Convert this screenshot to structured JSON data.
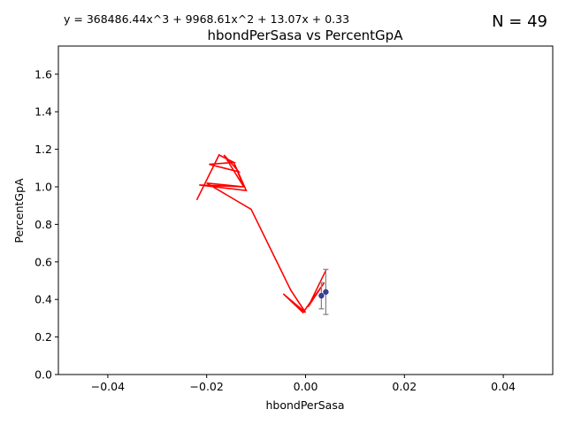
{
  "chart_data": {
    "type": "line",
    "title": "hbondPerSasa vs PercentGpA",
    "equation": "y = 368486.44x^3 + 9968.61x^2 + 13.07x + 0.33",
    "count_label": "N = 49",
    "xlabel": "hbondPerSasa",
    "ylabel": "PercentGpA",
    "xlim": [
      -0.05,
      0.05
    ],
    "ylim": [
      0.0,
      1.75
    ],
    "xticks": [
      -0.04,
      -0.02,
      0.0,
      0.02,
      0.04
    ],
    "xtick_labels": [
      "−0.04",
      "−0.02",
      "0.00",
      "0.02",
      "0.04"
    ],
    "yticks": [
      0.0,
      0.2,
      0.4,
      0.6,
      0.8,
      1.0,
      1.2,
      1.4,
      1.6
    ],
    "ytick_labels": [
      "0.0",
      "0.2",
      "0.4",
      "0.6",
      "0.8",
      "1.0",
      "1.2",
      "1.4",
      "1.6"
    ],
    "grid": false,
    "fit_line": {
      "color": "#ff0000",
      "x": [
        -0.022,
        -0.0175,
        -0.0145,
        -0.0195,
        -0.0135,
        -0.0165,
        -0.0125,
        -0.0215,
        -0.012,
        -0.0145,
        -0.0125,
        -0.02,
        -0.011,
        -0.003,
        0.0,
        -0.0045,
        -0.0005,
        0.0038,
        0.0005,
        0.0042
      ],
      "y": [
        0.93,
        1.17,
        1.13,
        1.12,
        1.08,
        1.17,
        1.0,
        1.01,
        0.98,
        1.13,
        1.0,
        1.02,
        0.88,
        0.45,
        0.33,
        0.43,
        0.33,
        0.49,
        0.36,
        0.56
      ]
    },
    "points": {
      "color": "#3a3d8f",
      "error_color": "#808080",
      "x": [
        0.0032,
        0.0041
      ],
      "y": [
        0.42,
        0.44
      ],
      "yerr": [
        0.07,
        0.12
      ]
    }
  }
}
